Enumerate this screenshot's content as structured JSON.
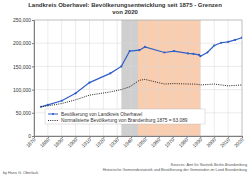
{
  "chart_data": {
    "type": "line",
    "title": "Landkreis Oberhavel: Bevölkerungsentwicklung seit 1875 - Grenzen von 2020",
    "x": [
      1875,
      1880,
      1890,
      1900,
      1910,
      1925,
      1933,
      1939,
      1946,
      1950,
      1964,
      1971,
      1981,
      1985,
      1989,
      1990,
      1995,
      2000,
      2005,
      2010,
      2015,
      2020
    ],
    "series": [
      {
        "name": "Bevölkerung von Landkreis Oberhavel",
        "color": "#2f5fc8",
        "marker": "circle",
        "line_style": "solid",
        "values": [
          63000,
          67000,
          76000,
          92000,
          115000,
          135000,
          150000,
          183000,
          185000,
          192000,
          180000,
          183000,
          178000,
          177000,
          175000,
          172000,
          180000,
          195000,
          201000,
          203000,
          207000,
          212000
        ]
      },
      {
        "name": "Normalisierte Bevölkerung von Brandenburg 1875 = 63.089",
        "color": "#222222",
        "line_style": "dotted",
        "values": [
          63000,
          65000,
          70000,
          78000,
          88000,
          95000,
          100000,
          106000,
          120000,
          122000,
          112000,
          113000,
          112000,
          112000,
          111000,
          110000,
          111000,
          112000,
          110000,
          108000,
          109000,
          110000
        ]
      }
    ],
    "spans": [
      {
        "start": 1933,
        "end": 1945,
        "color": "#cfcfcf"
      },
      {
        "start": 1945,
        "end": 1990,
        "color": "#f9cdb0"
      }
    ],
    "xlim": [
      1870,
      2020
    ],
    "xticks": [
      1870,
      1880,
      1890,
      1900,
      1910,
      1920,
      1930,
      1940,
      1950,
      1960,
      1970,
      1980,
      1990,
      2000,
      2010,
      2020
    ],
    "ylim": [
      0,
      250000
    ],
    "yticks": [
      0,
      {
        "value": 50000,
        "label": "50,000"
      },
      {
        "value": 100000,
        "label": "100,000"
      },
      {
        "value": 150000,
        "label": "150,000"
      },
      {
        "value": 200000,
        "label": "200,000"
      },
      {
        "value": 250000,
        "label": "250,000"
      }
    ],
    "grid": true,
    "legend": "bottom",
    "annotations": [
      "by Hans G. Oberlack",
      "Sources: Amt für Statistik Berlin-Brandenburg",
      "Historische Gemeindestatistik und Bevölkerung der Gemeinden im Land Brandenburg"
    ]
  }
}
